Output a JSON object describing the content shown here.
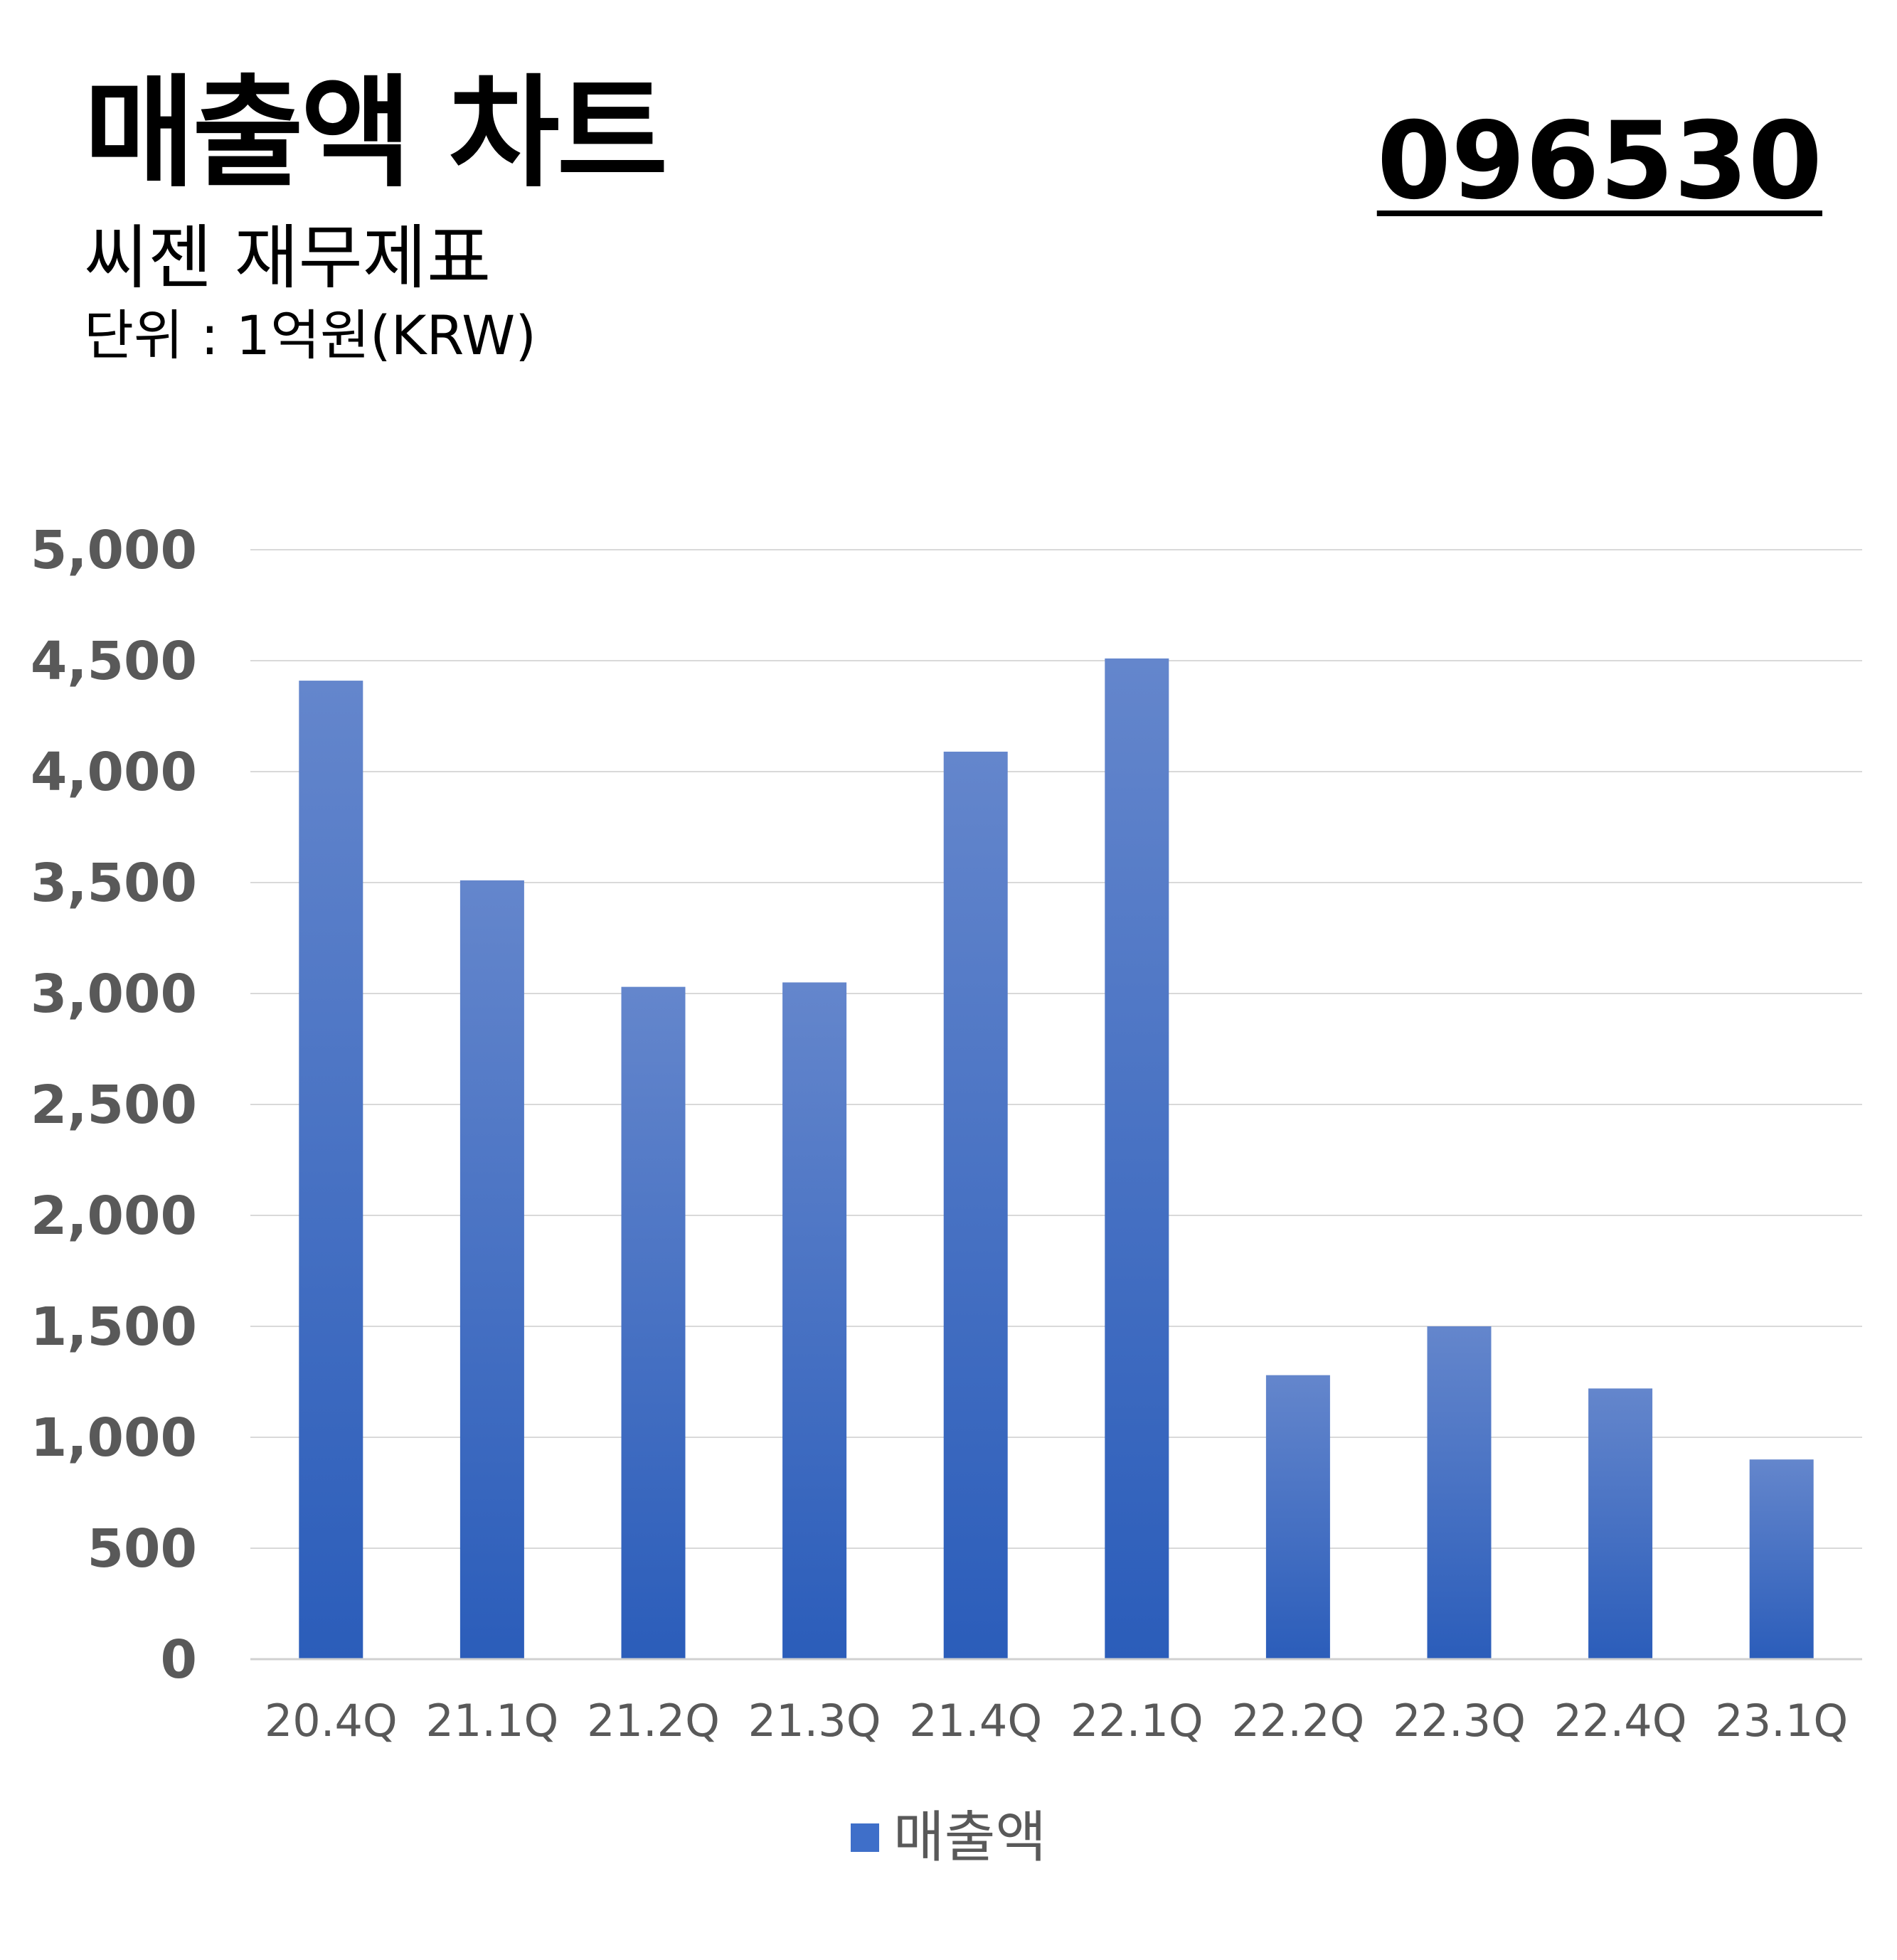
{
  "header": {
    "title": "매출액 차트",
    "subtitle": "씨젠 재무제표",
    "unit": "단위 : 1억원(KRW)",
    "code": "096530"
  },
  "colors": {
    "bar_top": "#6486cc",
    "bar_bottom": "#2b5dba",
    "grid": "#d9d9d9",
    "axis": "#d0d0d0",
    "tick_text": "#595959",
    "legend_swatch": "#3f6fc9"
  },
  "chart_data": {
    "type": "bar",
    "categories": [
      "20.4Q",
      "21.1Q",
      "21.2Q",
      "21.3Q",
      "21.4Q",
      "22.1Q",
      "22.2Q",
      "22.3Q",
      "22.4Q",
      "23.1Q"
    ],
    "series": [
      {
        "name": "매출액",
        "values": [
          4410,
          3510,
          3030,
          3050,
          4090,
          4510,
          1280,
          1500,
          1220,
          900
        ]
      }
    ],
    "yticks": [
      "0",
      "500",
      "1,000",
      "1,500",
      "2,000",
      "2,500",
      "3,000",
      "3,500",
      "4,000",
      "4,500",
      "5,000"
    ],
    "ylim": [
      0,
      5000
    ],
    "grid": true,
    "legend_position": "bottom-center"
  },
  "legend": {
    "label": "매출액"
  }
}
